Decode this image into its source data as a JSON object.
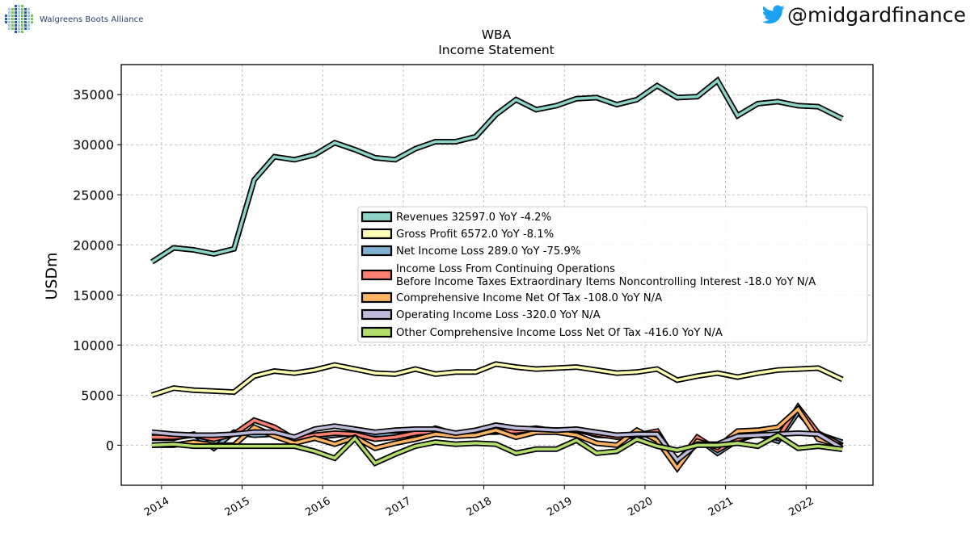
{
  "branding": {
    "company_name": "Walgreens Boots Alliance",
    "handle": "@midgardfinance",
    "twitter_color": "#1da1f2",
    "logo_colors": [
      "#2b5ea7",
      "#7fc25d",
      "#9ec9e8"
    ]
  },
  "chart_data": {
    "type": "line",
    "title": "WBA",
    "subtitle": "Income Statement",
    "xlabel": "",
    "ylabel": "USDm",
    "xlim": [
      2013.5,
      2022.83
    ],
    "ylim": [
      -4000,
      38000
    ],
    "x_ticks": [
      2014,
      2015,
      2016,
      2017,
      2018,
      2019,
      2020,
      2021,
      2022
    ],
    "x_tick_labels": [
      "2014",
      "2015",
      "2016",
      "2017",
      "2018",
      "2019",
      "2020",
      "2021",
      "2022"
    ],
    "y_ticks": [
      0,
      5000,
      10000,
      15000,
      20000,
      25000,
      30000,
      35000
    ],
    "y_tick_labels": [
      "0",
      "5000",
      "10000",
      "15000",
      "20000",
      "25000",
      "30000",
      "35000"
    ],
    "grid": true,
    "legend_position": "center-right",
    "x": [
      2013.88,
      2014.15,
      2014.4,
      2014.65,
      2014.9,
      2015.15,
      2015.4,
      2015.65,
      2015.9,
      2016.15,
      2016.4,
      2016.65,
      2016.9,
      2017.15,
      2017.4,
      2017.65,
      2017.9,
      2018.15,
      2018.4,
      2018.65,
      2018.9,
      2019.15,
      2019.4,
      2019.65,
      2019.9,
      2020.15,
      2020.4,
      2020.65,
      2020.9,
      2021.15,
      2021.4,
      2021.65,
      2021.9,
      2022.15,
      2022.45
    ],
    "series": [
      {
        "name": "Revenues",
        "legend": "Revenues  32597.0 YoY -4.2%",
        "color": "#8dd3c7",
        "values": [
          18300,
          19700,
          19500,
          19100,
          19600,
          26500,
          28800,
          28500,
          29000,
          30200,
          29500,
          28700,
          28500,
          29600,
          30300,
          30300,
          30800,
          33000,
          34500,
          33500,
          33900,
          34600,
          34700,
          34000,
          34500,
          35900,
          34700,
          34800,
          36400,
          32900,
          34100,
          34300,
          33900,
          33800,
          32600
        ]
      },
      {
        "name": "Gross Profit",
        "legend": "Gross Profit  6572.0 YoY -8.1%",
        "color": "#ffffb3",
        "values": [
          5000,
          5700,
          5500,
          5400,
          5300,
          6900,
          7400,
          7200,
          7500,
          8000,
          7600,
          7200,
          7100,
          7600,
          7100,
          7300,
          7300,
          8100,
          7800,
          7600,
          7700,
          7800,
          7500,
          7200,
          7300,
          7600,
          6500,
          6900,
          7200,
          6800,
          7200,
          7500,
          7600,
          7700,
          6572
        ]
      },
      {
        "name": "Net Income Loss",
        "legend": "Net Income Loss  289.0 YoY -75.9%",
        "color": "#80b1d3",
        "values": [
          700,
          700,
          1100,
          -300,
          1300,
          1000,
          1100,
          300,
          800,
          1000,
          1200,
          1100,
          1000,
          1000,
          1700,
          1100,
          1300,
          1300,
          1500,
          1700,
          1400,
          1600,
          1000,
          900,
          900,
          1300,
          -1700,
          700,
          -800,
          500,
          1100,
          400,
          3300,
          1100,
          289
        ]
      },
      {
        "name": "Income Loss From Continuing Operations Before Income Taxes Extraordinary Items Noncontrolling Interest",
        "legend": "Income Loss From Continuing Operations\nBefore Income Taxes Extraordinary Items Noncontrolling Interest  -18.0 YoY N/A",
        "color": "#fb8072",
        "values": [
          800,
          800,
          1000,
          600,
          1100,
          2500,
          1800,
          600,
          1000,
          1200,
          1100,
          600,
          800,
          1200,
          1400,
          1000,
          1100,
          1400,
          1400,
          1600,
          1500,
          1500,
          1100,
          800,
          1000,
          1400,
          -1800,
          800,
          -500,
          600,
          1200,
          700,
          3800,
          1200,
          -18
        ]
      },
      {
        "name": "Comprehensive Income Net Of Tax",
        "legend": "Comprehensive Income Net Of Tax  -108.0 YoY N/A",
        "color": "#fdb462",
        "values": [
          0,
          0,
          300,
          0,
          0,
          1800,
          900,
          200,
          700,
          100,
          800,
          -300,
          200,
          600,
          1100,
          900,
          1000,
          1500,
          800,
          1300,
          1300,
          1000,
          200,
          0,
          1500,
          500,
          -2300,
          400,
          -200,
          1400,
          1500,
          1800,
          3600,
          600,
          -108
        ]
      },
      {
        "name": "Operating Income Loss",
        "legend": "Operating Income Loss  -320.0 YoY N/A",
        "color": "#bebada",
        "values": [
          1300,
          1100,
          1000,
          1000,
          1100,
          1300,
          1300,
          800,
          1600,
          1900,
          1600,
          1300,
          1500,
          1600,
          1600,
          1200,
          1500,
          2000,
          1700,
          1600,
          1500,
          1600,
          1300,
          1000,
          1100,
          1100,
          -1500,
          100,
          100,
          900,
          1000,
          1100,
          1200,
          1100,
          -320
        ]
      },
      {
        "name": "Other Comprehensive Income Loss Net Of Tax",
        "legend": "Other Comprehensive Income Loss Net Of Tax  -416.0 YoY N/A",
        "color": "#b3de69",
        "values": [
          0,
          100,
          -100,
          -100,
          -100,
          -100,
          -100,
          -100,
          -600,
          -1300,
          700,
          -1800,
          -900,
          -100,
          300,
          100,
          200,
          100,
          -800,
          -400,
          -400,
          500,
          -800,
          -600,
          600,
          -100,
          -500,
          0,
          0,
          200,
          -100,
          1000,
          -300,
          -100,
          -416
        ]
      }
    ]
  }
}
